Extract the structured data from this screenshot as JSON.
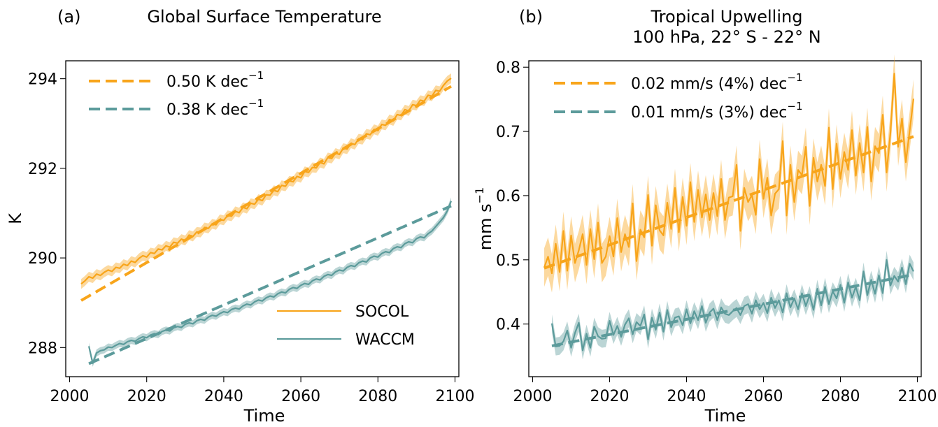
{
  "chart_data": [
    {
      "type": "line",
      "panel_label": "(a)",
      "title": "Global Surface Temperature",
      "subtitle": "",
      "xlabel": "Time",
      "ylabel": "K",
      "xlim": [
        1999,
        2101
      ],
      "ylim": [
        287.35,
        294.4
      ],
      "xticks": [
        2000,
        2020,
        2040,
        2060,
        2080,
        2100
      ],
      "yticks": [
        288,
        290,
        292,
        294
      ],
      "xtick_labels": [
        "2000",
        "2020",
        "2040",
        "2060",
        "2080",
        "2100"
      ],
      "ytick_labels": [
        "288",
        "290",
        "292",
        "294"
      ],
      "trend_legend": [
        {
          "label": "0.50 K dec",
          "superscript": "−1",
          "color": "#f8a51b"
        },
        {
          "label": "0.38 K dec",
          "superscript": "−1",
          "color": "#5c9b9b"
        }
      ],
      "model_legend": [
        {
          "label": "SOCOL",
          "color": "#f8a51b"
        },
        {
          "label": "WACCM",
          "color": "#5c9b9b"
        }
      ],
      "series": [
        {
          "name": "SOCOL",
          "color": "#f8a51b",
          "x_start": 2003,
          "x_end": 2099,
          "trend_start": 289.05,
          "trend_end": 293.83,
          "band_halfwidth": 0.11,
          "values": [
            289.42,
            289.49,
            289.58,
            289.55,
            289.64,
            289.61,
            289.68,
            289.73,
            289.7,
            289.79,
            289.77,
            289.86,
            289.83,
            289.93,
            289.9,
            289.99,
            290.05,
            290.02,
            290.12,
            290.1,
            290.2,
            290.18,
            290.27,
            290.24,
            290.35,
            290.33,
            290.42,
            290.39,
            290.51,
            290.48,
            290.58,
            290.57,
            290.68,
            290.66,
            290.76,
            290.74,
            290.86,
            290.84,
            290.95,
            290.93,
            291.04,
            291.01,
            291.13,
            291.1,
            291.22,
            291.2,
            291.31,
            291.28,
            291.41,
            291.4,
            291.51,
            291.48,
            291.62,
            291.6,
            291.72,
            291.7,
            291.82,
            291.79,
            291.93,
            291.91,
            292.02,
            292.01,
            292.13,
            292.1,
            292.24,
            292.22,
            292.34,
            292.31,
            292.45,
            292.43,
            292.56,
            292.53,
            292.66,
            292.64,
            292.77,
            292.75,
            292.87,
            292.84,
            292.98,
            292.96,
            293.09,
            293.06,
            293.2,
            293.18,
            293.31,
            293.28,
            293.42,
            293.4,
            293.52,
            293.5,
            293.63,
            293.61,
            293.74,
            293.72,
            293.85,
            293.95,
            294.01
          ]
        },
        {
          "name": "WACCM",
          "color": "#5c9b9b",
          "x_start": 2005,
          "x_end": 2099,
          "trend_start": 287.64,
          "trend_end": 291.16,
          "band_halfwidth": 0.08,
          "values": [
            288.03,
            287.65,
            287.88,
            287.93,
            287.95,
            288.01,
            288.0,
            288.05,
            288.09,
            288.07,
            288.13,
            288.16,
            288.14,
            288.2,
            288.24,
            288.22,
            288.28,
            288.31,
            288.29,
            288.36,
            288.39,
            288.37,
            288.44,
            288.47,
            288.45,
            288.52,
            288.55,
            288.53,
            288.6,
            288.63,
            288.61,
            288.68,
            288.72,
            288.7,
            288.76,
            288.8,
            288.78,
            288.85,
            288.88,
            288.86,
            288.93,
            288.97,
            288.95,
            289.02,
            289.06,
            289.04,
            289.11,
            289.15,
            289.13,
            289.2,
            289.24,
            289.22,
            289.3,
            289.34,
            289.32,
            289.39,
            289.43,
            289.41,
            289.49,
            289.53,
            289.51,
            289.59,
            289.63,
            289.61,
            289.69,
            289.73,
            289.71,
            289.79,
            289.83,
            289.81,
            289.89,
            289.93,
            289.91,
            290.0,
            290.04,
            290.02,
            290.1,
            290.14,
            290.12,
            290.21,
            290.25,
            290.23,
            290.32,
            290.36,
            290.34,
            290.43,
            290.47,
            290.45,
            290.54,
            290.6,
            290.7,
            290.8,
            290.9,
            291.05,
            291.27
          ]
        }
      ]
    },
    {
      "type": "line",
      "panel_label": "(b)",
      "title": "Tropical Upwelling",
      "subtitle": "100 hPa, 22° S - 22° N",
      "xlabel": "Time",
      "ylabel": "mm s",
      "ylabel_superscript": "−1",
      "xlim": [
        1999,
        2101
      ],
      "ylim": [
        0.318,
        0.81
      ],
      "xticks": [
        2000,
        2020,
        2040,
        2060,
        2080,
        2100
      ],
      "yticks": [
        0.4,
        0.5,
        0.6,
        0.7,
        0.8
      ],
      "xtick_labels": [
        "2000",
        "2020",
        "2040",
        "2060",
        "2080",
        "2100"
      ],
      "ytick_labels": [
        "0.4",
        "0.5",
        "0.6",
        "0.7",
        "0.8"
      ],
      "trend_legend": [
        {
          "label": "0.02 mm/s (4%) dec",
          "superscript": "−1",
          "color": "#f8a51b"
        },
        {
          "label": "0.01 mm/s (3%) dec",
          "superscript": "−1",
          "color": "#5c9b9b"
        }
      ],
      "series": [
        {
          "name": "SOCOL",
          "color": "#f8a51b",
          "x_start": 2003,
          "x_end": 2099,
          "trend_start": 0.487,
          "trend_end": 0.692,
          "band_halfwidth": 0.03,
          "values": [
            0.488,
            0.505,
            0.479,
            0.525,
            0.481,
            0.545,
            0.483,
            0.538,
            0.495,
            0.515,
            0.54,
            0.492,
            0.548,
            0.501,
            0.558,
            0.495,
            0.505,
            0.537,
            0.505,
            0.565,
            0.512,
            0.54,
            0.52,
            0.588,
            0.498,
            0.547,
            0.535,
            0.601,
            0.522,
            0.585,
            0.546,
            0.538,
            0.589,
            0.548,
            0.612,
            0.543,
            0.598,
            0.553,
            0.621,
            0.559,
            0.609,
            0.566,
            0.602,
            0.562,
            0.604,
            0.568,
            0.626,
            0.562,
            0.597,
            0.599,
            0.648,
            0.545,
            0.612,
            0.59,
            0.601,
            0.57,
            0.657,
            0.595,
            0.628,
            0.569,
            0.603,
            0.61,
            0.685,
            0.569,
            0.648,
            0.59,
            0.64,
            0.632,
            0.676,
            0.584,
            0.659,
            0.622,
            0.648,
            0.615,
            0.706,
            0.61,
            0.681,
            0.626,
            0.668,
            0.64,
            0.702,
            0.631,
            0.682,
            0.636,
            0.707,
            0.622,
            0.677,
            0.666,
            0.726,
            0.636,
            0.698,
            0.79,
            0.676,
            0.72,
            0.652,
            0.701,
            0.751
          ]
        },
        {
          "name": "WACCM",
          "color": "#5c9b9b",
          "x_start": 2005,
          "x_end": 2099,
          "trend_start": 0.366,
          "trend_end": 0.477,
          "band_halfwidth": 0.014,
          "values": [
            0.401,
            0.365,
            0.366,
            0.373,
            0.39,
            0.363,
            0.386,
            0.402,
            0.359,
            0.385,
            0.363,
            0.396,
            0.381,
            0.377,
            0.378,
            0.405,
            0.383,
            0.397,
            0.38,
            0.399,
            0.409,
            0.384,
            0.403,
            0.397,
            0.415,
            0.376,
            0.41,
            0.391,
            0.418,
            0.388,
            0.422,
            0.395,
            0.41,
            0.412,
            0.398,
            0.423,
            0.401,
            0.42,
            0.406,
            0.428,
            0.402,
            0.418,
            0.424,
            0.406,
            0.426,
            0.416,
            0.414,
            0.42,
            0.425,
            0.414,
            0.428,
            0.431,
            0.416,
            0.437,
            0.423,
            0.433,
            0.417,
            0.441,
            0.425,
            0.437,
            0.418,
            0.448,
            0.426,
            0.44,
            0.423,
            0.448,
            0.428,
            0.445,
            0.422,
            0.455,
            0.429,
            0.458,
            0.431,
            0.451,
            0.44,
            0.461,
            0.433,
            0.465,
            0.441,
            0.458,
            0.437,
            0.482,
            0.445,
            0.469,
            0.447,
            0.476,
            0.448,
            0.5,
            0.46,
            0.475,
            0.466,
            0.488,
            0.462,
            0.494,
            0.482
          ]
        }
      ]
    }
  ]
}
